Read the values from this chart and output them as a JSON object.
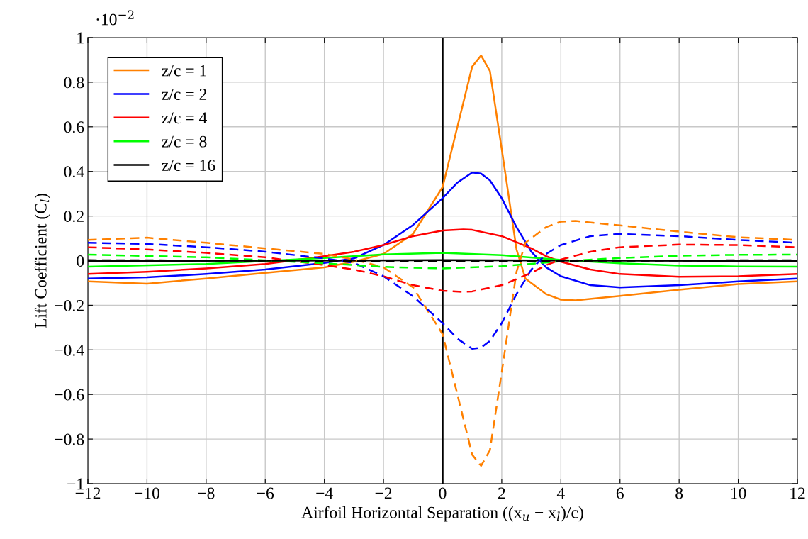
{
  "chart_data": {
    "type": "line",
    "xlabel": "Airfoil Horizontal Separation ((x$_{u}$ − x$_{l}$)/c)",
    "ylabel": "Lift Coefficient (C$_{l}$)",
    "annotations": [
      "·10$^{−2}$"
    ],
    "xlim": [
      -12,
      12
    ],
    "xticks": [
      {
        "value": -12,
        "label": "−12"
      },
      {
        "value": -10,
        "label": "−10"
      },
      {
        "value": -8,
        "label": "−8"
      },
      {
        "value": -6,
        "label": "−6"
      },
      {
        "value": -4,
        "label": "−4"
      },
      {
        "value": -2,
        "label": "−2"
      },
      0,
      2,
      4,
      6,
      8,
      10,
      12
    ],
    "ylim": [
      -1,
      1
    ],
    "yticks": [
      {
        "value": -1,
        "label": "−1"
      },
      {
        "value": -0.8,
        "label": "−0.8"
      },
      {
        "value": -0.6,
        "label": "−0.6"
      },
      {
        "value": -0.4,
        "label": "−0.4"
      },
      {
        "value": -0.2,
        "label": "−0.2"
      },
      {
        "value": 0,
        "label": "0"
      },
      {
        "value": 0.2,
        "label": "0.2"
      },
      {
        "value": 0.4,
        "label": "0.4"
      },
      {
        "value": 0.6,
        "label": "0.6"
      },
      {
        "value": 0.8,
        "label": "0.8"
      },
      {
        "value": 1,
        "label": "1"
      }
    ],
    "grid": true,
    "legend": "top left",
    "marker": "none",
    "ref_lines": [
      {
        "axis": "x",
        "value": 0,
        "color": "#000000"
      }
    ],
    "series": [
      {
        "name": "z/c = 1",
        "color": "#ff8000",
        "line_style": "solid",
        "x": [
          -12,
          -10,
          -8,
          -6,
          -4,
          -3,
          -2,
          -1,
          0,
          0.5,
          1,
          1.3,
          1.6,
          2,
          2.5,
          2.8,
          3.5,
          4,
          4.5,
          6,
          8,
          10,
          12
        ],
        "values": [
          -0.093,
          -0.103,
          -0.08,
          -0.055,
          -0.03,
          -0.005,
          0.03,
          0.12,
          0.33,
          0.6,
          0.87,
          0.92,
          0.85,
          0.5,
          0.05,
          -0.08,
          -0.15,
          -0.175,
          -0.178,
          -0.158,
          -0.13,
          -0.105,
          -0.093
        ]
      },
      {
        "name": "z/c = 2",
        "color": "#0000ff",
        "line_style": "solid",
        "x": [
          -12,
          -10,
          -8,
          -6,
          -4,
          -3,
          -2,
          -1,
          0,
          0.5,
          1,
          1.3,
          1.6,
          2,
          2.5,
          3,
          3.5,
          4,
          5,
          6,
          8,
          10,
          12
        ],
        "values": [
          -0.08,
          -0.075,
          -0.06,
          -0.04,
          -0.01,
          0.01,
          0.07,
          0.16,
          0.28,
          0.35,
          0.395,
          0.39,
          0.36,
          0.28,
          0.15,
          0.04,
          -0.03,
          -0.07,
          -0.11,
          -0.12,
          -0.11,
          -0.093,
          -0.08
        ]
      },
      {
        "name": "z/c = 4",
        "color": "#ff0000",
        "line_style": "solid",
        "x": [
          -12,
          -10,
          -8,
          -6,
          -4,
          -3,
          -2,
          -1,
          0,
          0.7,
          1,
          2,
          3,
          3.5,
          4,
          5,
          6,
          8,
          10,
          12
        ],
        "values": [
          -0.06,
          -0.05,
          -0.035,
          -0.015,
          0.02,
          0.04,
          0.07,
          0.11,
          0.135,
          0.14,
          0.138,
          0.11,
          0.055,
          0.02,
          -0.005,
          -0.04,
          -0.06,
          -0.072,
          -0.07,
          -0.06
        ]
      },
      {
        "name": "z/c = 8",
        "color": "#00ff00",
        "line_style": "solid",
        "x": [
          -12,
          -8,
          -4,
          -2,
          0,
          2,
          4,
          6,
          8,
          10,
          12
        ],
        "values": [
          -0.027,
          -0.015,
          0.012,
          0.028,
          0.035,
          0.025,
          0.003,
          -0.012,
          -0.022,
          -0.026,
          -0.027
        ]
      },
      {
        "name": "z/c = 16",
        "color": "#000000",
        "line_style": "solid",
        "x": [
          -12,
          0,
          12
        ],
        "values": [
          -0.002,
          0.002,
          -0.002
        ]
      },
      {
        "color": "#ff8000",
        "line_style": "dashed",
        "x": [
          -12,
          -10,
          -8,
          -6,
          -4,
          -3,
          -2,
          -1,
          0,
          0.5,
          1,
          1.3,
          1.6,
          2,
          2.5,
          2.8,
          3.5,
          4,
          4.5,
          6,
          8,
          10,
          12
        ],
        "values": [
          0.093,
          0.103,
          0.08,
          0.055,
          0.03,
          0.005,
          -0.03,
          -0.12,
          -0.33,
          -0.6,
          -0.87,
          -0.92,
          -0.85,
          -0.5,
          -0.05,
          0.08,
          0.15,
          0.175,
          0.178,
          0.158,
          0.13,
          0.105,
          0.093
        ]
      },
      {
        "color": "#0000ff",
        "line_style": "dashed",
        "x": [
          -12,
          -10,
          -8,
          -6,
          -4,
          -3,
          -2,
          -1,
          0,
          0.5,
          1,
          1.3,
          1.6,
          2,
          2.5,
          3,
          3.5,
          4,
          5,
          6,
          8,
          10,
          12
        ],
        "values": [
          0.08,
          0.075,
          0.06,
          0.04,
          0.01,
          -0.01,
          -0.07,
          -0.16,
          -0.28,
          -0.35,
          -0.395,
          -0.39,
          -0.36,
          -0.28,
          -0.15,
          -0.04,
          0.03,
          0.07,
          0.11,
          0.12,
          0.11,
          0.093,
          0.08
        ]
      },
      {
        "color": "#ff0000",
        "line_style": "dashed",
        "x": [
          -12,
          -10,
          -8,
          -6,
          -4,
          -3,
          -2,
          -1,
          0,
          0.7,
          1,
          2,
          3,
          3.5,
          4,
          5,
          6,
          8,
          10,
          12
        ],
        "values": [
          0.06,
          0.05,
          0.035,
          0.015,
          -0.02,
          -0.04,
          -0.07,
          -0.11,
          -0.135,
          -0.14,
          -0.138,
          -0.11,
          -0.055,
          -0.02,
          0.005,
          0.04,
          0.06,
          0.072,
          0.07,
          0.06
        ]
      },
      {
        "color": "#00ff00",
        "line_style": "dashed",
        "x": [
          -12,
          -8,
          -4,
          -2,
          0,
          2,
          4,
          6,
          8,
          10,
          12
        ],
        "values": [
          0.027,
          0.015,
          -0.012,
          -0.028,
          -0.035,
          -0.025,
          -0.003,
          0.012,
          0.022,
          0.026,
          0.027
        ]
      },
      {
        "color": "#000000",
        "line_style": "dashed",
        "x": [
          -12,
          0,
          12
        ],
        "values": [
          0.002,
          -0.002,
          0.002
        ]
      }
    ]
  }
}
